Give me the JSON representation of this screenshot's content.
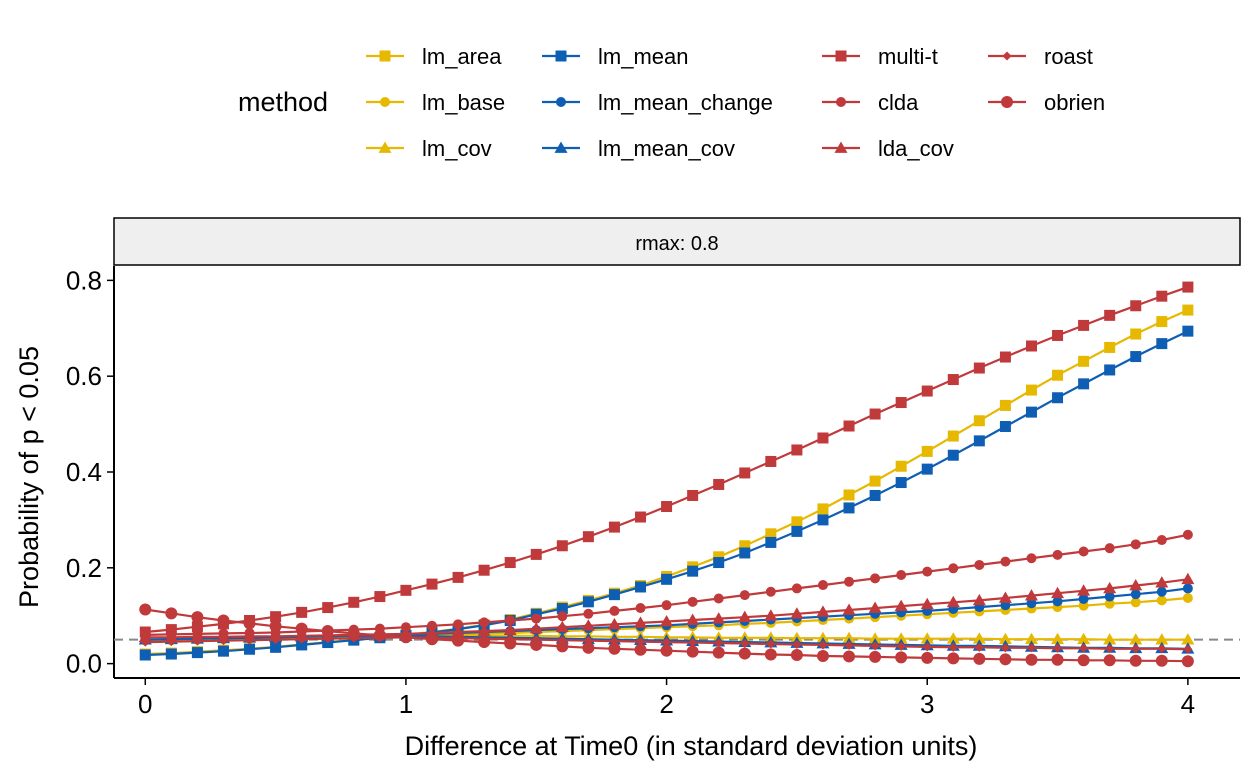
{
  "chart_data": {
    "type": "line",
    "xlabel": "Difference at Time0 (in standard deviation units)",
    "ylabel": "Probability of p < 0.05",
    "facet_label": "rmax: 0.8",
    "legend": {
      "title": "method",
      "position": "top"
    },
    "xlim": [
      -0.12,
      4.2
    ],
    "ylim": [
      -0.03,
      0.83
    ],
    "x_ticks": [
      0,
      1,
      2,
      3,
      4
    ],
    "y_ticks": [
      0.0,
      0.2,
      0.4,
      0.6,
      0.8
    ],
    "x_tick_labels": [
      "0",
      "1",
      "2",
      "3",
      "4"
    ],
    "y_tick_labels": [
      "0.0",
      "0.2",
      "0.4",
      "0.6",
      "0.8"
    ],
    "reference_line": {
      "y": 0.05,
      "style": "dashed",
      "color": "#888888"
    },
    "grid": false,
    "x": [
      0,
      0.1,
      0.2,
      0.3,
      0.4,
      0.5,
      0.6,
      0.7,
      0.8,
      0.9,
      1.0,
      1.1,
      1.2,
      1.3,
      1.4,
      1.5,
      1.6,
      1.7,
      1.8,
      1.9,
      2.0,
      2.1,
      2.2,
      2.3,
      2.4,
      2.5,
      2.6,
      2.7,
      2.8,
      2.9,
      3.0,
      3.1,
      3.2,
      3.3,
      3.4,
      3.5,
      3.6,
      3.7,
      3.8,
      3.9,
      4.0
    ],
    "series": [
      {
        "name": "lm_area",
        "color": "#E7B800",
        "marker": "square",
        "values": [
          0.02,
          0.022,
          0.025,
          0.028,
          0.031,
          0.035,
          0.04,
          0.045,
          0.05,
          0.055,
          0.06,
          0.066,
          0.073,
          0.081,
          0.092,
          0.105,
          0.118,
          0.132,
          0.147,
          0.163,
          0.182,
          0.202,
          0.223,
          0.246,
          0.271,
          0.296,
          0.323,
          0.352,
          0.381,
          0.412,
          0.443,
          0.475,
          0.507,
          0.539,
          0.571,
          0.602,
          0.631,
          0.66,
          0.688,
          0.714,
          0.738
        ]
      },
      {
        "name": "lm_base",
        "color": "#E7B800",
        "marker": "circle",
        "values": [
          0.048,
          0.049,
          0.05,
          0.051,
          0.052,
          0.053,
          0.054,
          0.055,
          0.056,
          0.057,
          0.058,
          0.059,
          0.06,
          0.062,
          0.064,
          0.066,
          0.068,
          0.07,
          0.072,
          0.074,
          0.076,
          0.078,
          0.08,
          0.083,
          0.085,
          0.088,
          0.091,
          0.094,
          0.097,
          0.1,
          0.103,
          0.106,
          0.109,
          0.112,
          0.115,
          0.118,
          0.121,
          0.125,
          0.128,
          0.132,
          0.137
        ]
      },
      {
        "name": "lm_cov",
        "color": "#E7B800",
        "marker": "triangle",
        "values": [
          0.05,
          0.051,
          0.052,
          0.053,
          0.054,
          0.055,
          0.056,
          0.057,
          0.058,
          0.058,
          0.058,
          0.058,
          0.058,
          0.058,
          0.058,
          0.058,
          0.057,
          0.057,
          0.056,
          0.056,
          0.055,
          0.055,
          0.054,
          0.054,
          0.054,
          0.053,
          0.053,
          0.053,
          0.052,
          0.052,
          0.052,
          0.052,
          0.052,
          0.051,
          0.051,
          0.051,
          0.051,
          0.05,
          0.05,
          0.05,
          0.05
        ]
      },
      {
        "name": "lm_mean",
        "color": "#0E5FB4",
        "marker": "square",
        "values": [
          0.018,
          0.02,
          0.023,
          0.026,
          0.03,
          0.034,
          0.039,
          0.044,
          0.049,
          0.054,
          0.059,
          0.065,
          0.072,
          0.08,
          0.09,
          0.103,
          0.115,
          0.129,
          0.144,
          0.16,
          0.176,
          0.193,
          0.211,
          0.231,
          0.253,
          0.276,
          0.3,
          0.325,
          0.351,
          0.378,
          0.406,
          0.435,
          0.465,
          0.495,
          0.525,
          0.555,
          0.584,
          0.613,
          0.641,
          0.668,
          0.694
        ]
      },
      {
        "name": "lm_mean_change",
        "color": "#0E5FB4",
        "marker": "circle",
        "values": [
          0.05,
          0.051,
          0.052,
          0.053,
          0.054,
          0.055,
          0.056,
          0.057,
          0.058,
          0.059,
          0.06,
          0.062,
          0.064,
          0.066,
          0.068,
          0.07,
          0.072,
          0.074,
          0.076,
          0.078,
          0.08,
          0.083,
          0.086,
          0.089,
          0.092,
          0.095,
          0.098,
          0.101,
          0.104,
          0.107,
          0.11,
          0.114,
          0.118,
          0.122,
          0.126,
          0.13,
          0.135,
          0.14,
          0.145,
          0.15,
          0.157
        ]
      },
      {
        "name": "lm_mean_cov",
        "color": "#0E5FB4",
        "marker": "triangle",
        "values": [
          0.05,
          0.051,
          0.052,
          0.053,
          0.054,
          0.055,
          0.056,
          0.057,
          0.058,
          0.058,
          0.058,
          0.057,
          0.056,
          0.055,
          0.054,
          0.053,
          0.052,
          0.051,
          0.05,
          0.049,
          0.048,
          0.047,
          0.046,
          0.045,
          0.044,
          0.043,
          0.042,
          0.041,
          0.04,
          0.039,
          0.038,
          0.037,
          0.037,
          0.036,
          0.035,
          0.034,
          0.033,
          0.033,
          0.032,
          0.032,
          0.031
        ]
      },
      {
        "name": "multi-t",
        "color": "#C0393B",
        "marker": "square",
        "values": [
          0.066,
          0.071,
          0.077,
          0.083,
          0.09,
          0.098,
          0.107,
          0.117,
          0.128,
          0.14,
          0.153,
          0.166,
          0.18,
          0.195,
          0.211,
          0.228,
          0.246,
          0.265,
          0.285,
          0.306,
          0.328,
          0.351,
          0.374,
          0.398,
          0.422,
          0.446,
          0.471,
          0.496,
          0.521,
          0.545,
          0.569,
          0.593,
          0.617,
          0.64,
          0.663,
          0.685,
          0.706,
          0.727,
          0.747,
          0.767,
          0.786
        ]
      },
      {
        "name": "clda",
        "color": "#C0393B",
        "marker": "circle",
        "values": [
          0.06,
          0.061,
          0.062,
          0.063,
          0.064,
          0.065,
          0.067,
          0.069,
          0.071,
          0.073,
          0.076,
          0.079,
          0.082,
          0.086,
          0.09,
          0.094,
          0.099,
          0.104,
          0.11,
          0.116,
          0.122,
          0.129,
          0.136,
          0.143,
          0.15,
          0.157,
          0.164,
          0.171,
          0.178,
          0.185,
          0.192,
          0.199,
          0.206,
          0.213,
          0.22,
          0.227,
          0.234,
          0.241,
          0.249,
          0.258,
          0.269
        ]
      },
      {
        "name": "lda_cov",
        "color": "#C0393B",
        "marker": "triangle",
        "values": [
          0.055,
          0.055,
          0.056,
          0.056,
          0.057,
          0.057,
          0.058,
          0.059,
          0.06,
          0.061,
          0.062,
          0.064,
          0.066,
          0.068,
          0.07,
          0.073,
          0.076,
          0.079,
          0.082,
          0.085,
          0.088,
          0.091,
          0.094,
          0.097,
          0.1,
          0.104,
          0.108,
          0.112,
          0.116,
          0.12,
          0.124,
          0.128,
          0.132,
          0.137,
          0.142,
          0.147,
          0.152,
          0.157,
          0.163,
          0.169,
          0.176
        ]
      },
      {
        "name": "roast",
        "color": "#C0393B",
        "marker": "diamond",
        "values": [
          0.045,
          0.046,
          0.047,
          0.048,
          0.049,
          0.05,
          0.051,
          0.052,
          0.053,
          0.054,
          0.055,
          0.054,
          0.053,
          0.052,
          0.051,
          0.05,
          0.049,
          0.048,
          0.047,
          0.046,
          0.045,
          0.044,
          0.043,
          0.042,
          0.041,
          0.04,
          0.039,
          0.038,
          0.037,
          0.036,
          0.035,
          0.034,
          0.034,
          0.033,
          0.033,
          0.032,
          0.032,
          0.031,
          0.031,
          0.031,
          0.03
        ]
      },
      {
        "name": "obrien",
        "color": "#C0393B",
        "marker": "circle-large",
        "values": [
          0.113,
          0.105,
          0.097,
          0.09,
          0.084,
          0.078,
          0.073,
          0.068,
          0.063,
          0.059,
          0.055,
          0.051,
          0.048,
          0.045,
          0.042,
          0.039,
          0.036,
          0.033,
          0.031,
          0.029,
          0.027,
          0.025,
          0.023,
          0.021,
          0.019,
          0.018,
          0.016,
          0.015,
          0.014,
          0.013,
          0.012,
          0.011,
          0.01,
          0.009,
          0.008,
          0.008,
          0.007,
          0.007,
          0.006,
          0.006,
          0.005
        ]
      }
    ]
  }
}
